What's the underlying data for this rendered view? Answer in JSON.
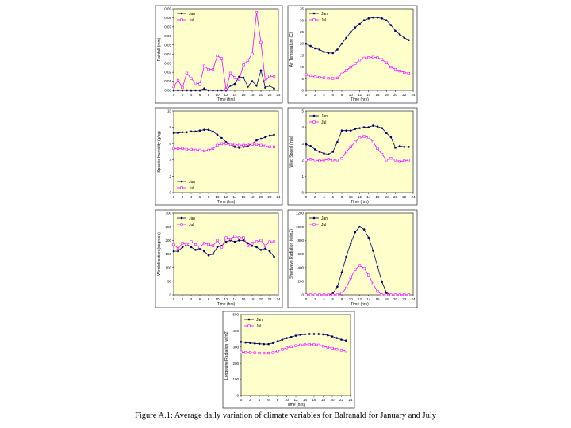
{
  "caption": "Figure A.1: Average daily variation of climate variables for Balranald for January and July",
  "style": {
    "plot_bg": "#ffffcc",
    "jan_color": "#000066",
    "jul_color": "#ff00ff"
  },
  "chart_data": [
    {
      "type": "line",
      "title": "",
      "xlabel": "Time (hrs)",
      "ylabel": "Rainfall (mm)",
      "xlim": [
        0,
        24
      ],
      "ylim": [
        0,
        0.09
      ],
      "xticks": [
        "0",
        "2",
        "4",
        "6",
        "8",
        "10",
        "12",
        "14",
        "16",
        "18",
        "20",
        "22",
        "24"
      ],
      "yticks": [
        "0.00",
        "0.01",
        "0.02",
        "0.03",
        "0.04",
        "0.05",
        "0.06",
        "0.07",
        "0.08",
        "0.09"
      ],
      "legend": "top-left",
      "x": [
        0,
        1,
        2,
        3,
        4,
        5,
        6,
        7,
        8,
        9,
        10,
        11,
        12,
        13,
        14,
        15,
        16,
        17,
        18,
        19,
        20,
        21,
        22,
        23
      ],
      "series": [
        {
          "name": "Jan",
          "values": [
            0,
            0,
            0,
            0,
            0,
            0,
            0,
            0.002,
            0,
            0,
            0,
            0,
            0,
            0.005,
            0.007,
            0.015,
            0.014,
            0.004,
            0.01,
            0.005,
            0.022,
            0.003,
            0.005,
            0.002
          ]
        },
        {
          "name": "Jul",
          "values": [
            0.004,
            0.011,
            0.003,
            0.019,
            0.013,
            0.008,
            0.007,
            0.027,
            0.023,
            0.023,
            0.038,
            0.035,
            0.001,
            0.019,
            0.014,
            0.012,
            0.028,
            0.033,
            0.04,
            0.086,
            0.053,
            0.01,
            0.016,
            0.015
          ]
        }
      ]
    },
    {
      "type": "line",
      "title": "",
      "xlabel": "Time (hrs)",
      "ylabel": "Air Temperature (C)",
      "xlim": [
        0,
        24
      ],
      "ylim": [
        0,
        35
      ],
      "xticks": [
        "0",
        "2",
        "4",
        "6",
        "8",
        "10",
        "12",
        "14",
        "16",
        "18",
        "20",
        "22",
        "24"
      ],
      "yticks": [
        "0",
        "5",
        "10",
        "15",
        "20",
        "25",
        "30",
        "35"
      ],
      "legend": "top-left",
      "x": [
        0,
        1,
        2,
        3,
        4,
        5,
        6,
        7,
        8,
        9,
        10,
        11,
        12,
        13,
        14,
        15,
        16,
        17,
        18,
        19,
        20,
        21,
        22,
        23
      ],
      "series": [
        {
          "name": "Jan",
          "values": [
            20,
            19,
            18,
            17.5,
            16.5,
            16,
            16,
            17.5,
            20,
            22.5,
            25,
            27,
            28.5,
            30,
            30.8,
            31.2,
            31.2,
            30.8,
            30,
            28,
            25.5,
            24,
            22.5,
            21.5
          ]
        },
        {
          "name": "Jul",
          "values": [
            6.7,
            6.3,
            5.8,
            5.6,
            5.4,
            5.2,
            5.1,
            5.3,
            7,
            8.5,
            10,
            11.5,
            13,
            13.8,
            14,
            14.2,
            14,
            13.2,
            11.8,
            10,
            9,
            8.3,
            7.7,
            7.3
          ]
        }
      ]
    },
    {
      "type": "line",
      "title": "",
      "xlabel": "Time (hrs)",
      "ylabel": "Specific Humidity (g/kg)",
      "xlim": [
        0,
        24
      ],
      "ylim": [
        0,
        10
      ],
      "xticks": [
        "0",
        "2",
        "4",
        "6",
        "8",
        "10",
        "12",
        "14",
        "16",
        "18",
        "20",
        "22",
        "24"
      ],
      "yticks": [
        "0",
        "2",
        "4",
        "6",
        "8",
        "10"
      ],
      "legend": "bottom-left",
      "x": [
        0,
        1,
        2,
        3,
        4,
        5,
        6,
        7,
        8,
        9,
        10,
        11,
        12,
        13,
        14,
        15,
        16,
        17,
        18,
        19,
        20,
        21,
        22,
        23
      ],
      "series": [
        {
          "name": "Jan",
          "values": [
            7.3,
            7.3,
            7.4,
            7.4,
            7.5,
            7.5,
            7.6,
            7.7,
            7.7,
            7.5,
            7.1,
            6.7,
            6.2,
            5.9,
            5.6,
            5.5,
            5.6,
            5.7,
            6,
            6.4,
            6.6,
            6.8,
            7,
            7.1
          ]
        },
        {
          "name": "Jul",
          "values": [
            5.4,
            5.4,
            5.4,
            5.3,
            5.3,
            5.2,
            5.2,
            5.1,
            5.2,
            5.4,
            5.8,
            6,
            6,
            5.9,
            5.9,
            5.8,
            5.8,
            5.9,
            5.9,
            5.9,
            5.8,
            5.7,
            5.6,
            5.6
          ]
        }
      ]
    },
    {
      "type": "line",
      "title": "",
      "xlabel": "Time (hrs)",
      "ylabel": "Wind Speed (m/s)",
      "xlim": [
        0,
        24
      ],
      "ylim": [
        0,
        5
      ],
      "xticks": [
        "0",
        "2",
        "4",
        "6",
        "8",
        "10",
        "12",
        "14",
        "16",
        "18",
        "20",
        "22",
        "24"
      ],
      "yticks": [
        "0",
        "1",
        "2",
        "3",
        "4",
        "5"
      ],
      "legend": "top-left",
      "x": [
        0,
        1,
        2,
        3,
        4,
        5,
        6,
        7,
        8,
        9,
        10,
        11,
        12,
        13,
        14,
        15,
        16,
        17,
        18,
        19,
        20,
        21,
        22,
        23
      ],
      "series": [
        {
          "name": "Jan",
          "values": [
            2.95,
            2.85,
            2.65,
            2.5,
            2.4,
            2.35,
            2.5,
            3.1,
            3.8,
            3.8,
            3.8,
            3.9,
            3.95,
            4,
            4,
            4.1,
            4.05,
            3.95,
            3.65,
            3.4,
            2.75,
            2.85,
            2.8,
            2.8
          ]
        },
        {
          "name": "Jul",
          "values": [
            2,
            2.05,
            2,
            1.95,
            2,
            2.05,
            2,
            2,
            2.1,
            2.5,
            2.8,
            3.1,
            3.35,
            3.45,
            3.4,
            3.1,
            2.7,
            2.35,
            2,
            2.1,
            2,
            1.9,
            1.95,
            2
          ]
        }
      ]
    },
    {
      "type": "line",
      "title": "",
      "xlabel": "Time (hrs)",
      "ylabel": "Wind direction (degrees)",
      "xlim": [
        0,
        24
      ],
      "ylim": [
        0,
        300
      ],
      "xticks": [
        "0",
        "2",
        "4",
        "6",
        "8",
        "10",
        "12",
        "14",
        "16",
        "18",
        "20",
        "22",
        "24"
      ],
      "yticks": [
        "0",
        "50",
        "100",
        "150",
        "200",
        "250",
        "300"
      ],
      "legend": "top-left",
      "x": [
        0,
        1,
        2,
        3,
        4,
        5,
        6,
        7,
        8,
        9,
        10,
        11,
        12,
        13,
        14,
        15,
        16,
        17,
        18,
        19,
        20,
        21,
        22,
        23
      ],
      "series": [
        {
          "name": "Jan",
          "values": [
            160,
            160,
            175,
            185,
            175,
            165,
            170,
            160,
            145,
            150,
            175,
            180,
            195,
            200,
            195,
            200,
            200,
            190,
            180,
            175,
            165,
            170,
            160,
            140
          ]
        },
        {
          "name": "Jul",
          "values": [
            185,
            170,
            190,
            185,
            195,
            185,
            175,
            190,
            185,
            180,
            200,
            175,
            210,
            205,
            215,
            210,
            210,
            180,
            190,
            195,
            200,
            180,
            195,
            195
          ]
        }
      ]
    },
    {
      "type": "line",
      "title": "",
      "xlabel": "Time (hrs)",
      "ylabel": "Shortwave Radiation (w/m2)",
      "xlim": [
        0,
        24
      ],
      "ylim": [
        0,
        1200
      ],
      "xticks": [
        "0",
        "2",
        "4",
        "6",
        "8",
        "10",
        "12",
        "14",
        "16",
        "18",
        "20",
        "22",
        "24"
      ],
      "yticks": [
        "0",
        "200",
        "400",
        "600",
        "800",
        "1000",
        "1200"
      ],
      "legend": "top-left",
      "x": [
        0,
        1,
        2,
        3,
        4,
        5,
        6,
        7,
        8,
        9,
        10,
        11,
        12,
        13,
        14,
        15,
        16,
        17,
        18,
        19,
        20,
        21,
        22,
        23
      ],
      "series": [
        {
          "name": "Jan",
          "values": [
            0,
            0,
            0,
            0,
            0,
            0,
            20,
            120,
            330,
            560,
            760,
            920,
            1000,
            960,
            840,
            650,
            420,
            190,
            30,
            0,
            0,
            0,
            0,
            0
          ]
        },
        {
          "name": "Jul",
          "values": [
            0,
            0,
            0,
            0,
            0,
            0,
            0,
            0,
            20,
            100,
            250,
            370,
            430,
            390,
            290,
            160,
            50,
            0,
            0,
            0,
            0,
            0,
            0,
            0
          ]
        }
      ]
    },
    {
      "type": "line",
      "title": "",
      "xlabel": "Time (hrs)",
      "ylabel": "Longwave Radiation (w/m2)",
      "xlim": [
        0,
        24
      ],
      "ylim": [
        0,
        500
      ],
      "xticks": [
        "0",
        "2",
        "4",
        "6",
        "8",
        "10",
        "12",
        "14",
        "16",
        "18",
        "20",
        "22",
        "24"
      ],
      "yticks": [
        "0",
        "100",
        "200",
        "300",
        "400",
        "500"
      ],
      "legend": "top-left",
      "x": [
        0,
        1,
        2,
        3,
        4,
        5,
        6,
        7,
        8,
        9,
        10,
        11,
        12,
        13,
        14,
        15,
        16,
        17,
        18,
        19,
        20,
        21,
        22,
        23
      ],
      "series": [
        {
          "name": "Jan",
          "values": [
            332,
            328,
            325,
            322,
            320,
            318,
            318,
            325,
            335,
            345,
            355,
            362,
            370,
            375,
            378,
            380,
            380,
            380,
            378,
            372,
            365,
            355,
            345,
            340
          ]
        },
        {
          "name": "Jul",
          "values": [
            268,
            266,
            265,
            264,
            262,
            262,
            262,
            265,
            275,
            285,
            295,
            302,
            308,
            312,
            314,
            315,
            315,
            312,
            305,
            298,
            292,
            286,
            280,
            276
          ]
        }
      ]
    }
  ]
}
